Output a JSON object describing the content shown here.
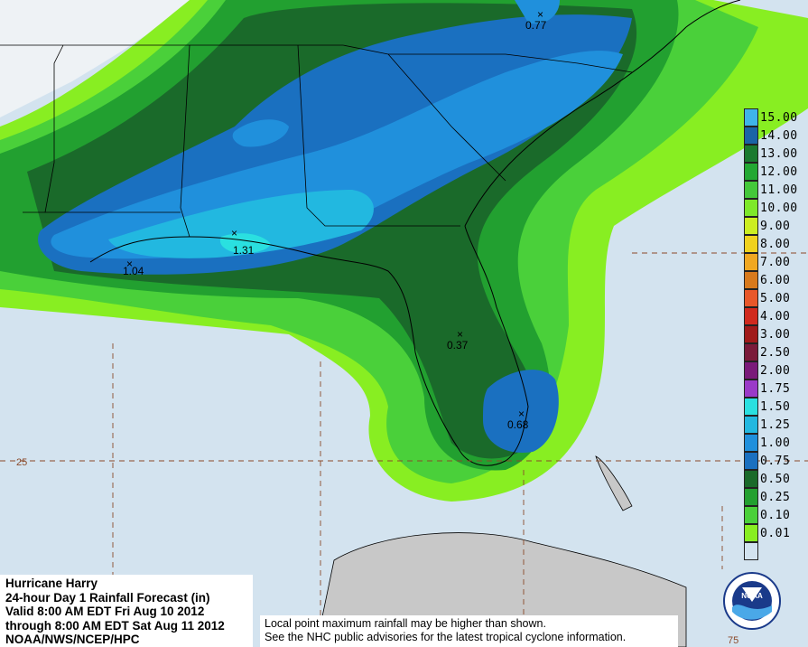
{
  "title": {
    "line1": "Hurricane Harry",
    "line2": "24-hour Day 1 Rainfall Forecast (in)",
    "line3": "Valid 8:00 AM EDT Fri Aug 10 2012",
    "line4": "through 8:00 AM EDT Sat Aug 11 2012",
    "line5": "NOAA/NWS/NCEP/HPC"
  },
  "note": {
    "line1": "Local point maximum rainfall may be higher than shown.",
    "line2": "See the NHC public advisories for the latest tropical cyclone information."
  },
  "legend": [
    {
      "label": "15.00",
      "color": "#3fb4e8"
    },
    {
      "label": "14.00",
      "color": "#1a64a6"
    },
    {
      "label": "13.00",
      "color": "#1a7a30"
    },
    {
      "label": "12.00",
      "color": "#22a833"
    },
    {
      "label": "11.00",
      "color": "#44c83a"
    },
    {
      "label": "10.00",
      "color": "#7ee82a"
    },
    {
      "label": "9.00",
      "color": "#ccee22"
    },
    {
      "label": "8.00",
      "color": "#f0d21e"
    },
    {
      "label": "7.00",
      "color": "#f0a822"
    },
    {
      "label": "6.00",
      "color": "#d87a1c"
    },
    {
      "label": "5.00",
      "color": "#e8582a"
    },
    {
      "label": "4.00",
      "color": "#d02a1e"
    },
    {
      "label": "3.00",
      "color": "#a01a1a"
    },
    {
      "label": "2.50",
      "color": "#7a1a3a"
    },
    {
      "label": "2.00",
      "color": "#7a1a7a"
    },
    {
      "label": "1.75",
      "color": "#9a3ac8"
    },
    {
      "label": "1.50",
      "color": "#2ae0e0"
    },
    {
      "label": "1.25",
      "color": "#22b8e0"
    },
    {
      "label": "1.00",
      "color": "#2090dc"
    },
    {
      "label": "0.75",
      "color": "#1a70c0"
    },
    {
      "label": "0.50",
      "color": "#1a6a2a"
    },
    {
      "label": "0.25",
      "color": "#22a030"
    },
    {
      "label": "0.10",
      "color": "#4ad03a"
    },
    {
      "label": "0.01",
      "color": "#88ee22"
    },
    {
      "label": "",
      "color": "#d3e3ef"
    }
  ],
  "point_labels": [
    {
      "text": "0.77"
    },
    {
      "text": "1.31"
    },
    {
      "text": "1.04"
    },
    {
      "text": "0.37"
    },
    {
      "text": "0.68"
    }
  ],
  "grid_labels": [
    {
      "text": "25"
    },
    {
      "text": "75"
    }
  ],
  "logo_text": "NOAA",
  "colors": {
    "ocean": "#d3e3ef",
    "land": "#c8c8c8"
  }
}
